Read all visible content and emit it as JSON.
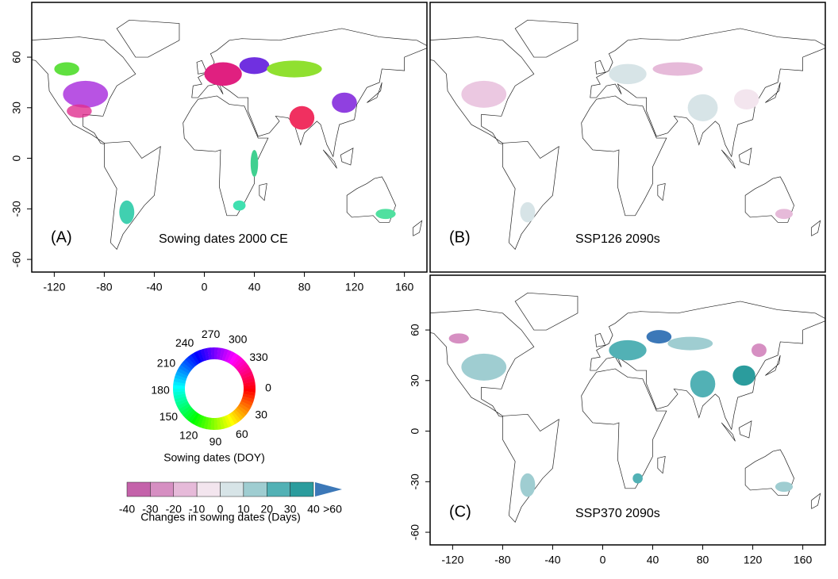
{
  "panels": [
    {
      "label": "(A)",
      "title": "Sowing dates 2000 CE"
    },
    {
      "label": "(B)",
      "title": "SSP126 2090s"
    },
    {
      "label": "(C)",
      "title": "SSP370 2090s"
    }
  ],
  "xlim": [
    -138,
    178
  ],
  "ylim": [
    -67.5,
    92.5
  ],
  "xticks": [
    -120,
    -80,
    -40,
    0,
    40,
    80,
    120,
    160
  ],
  "yticks": [
    -60,
    -30,
    0,
    30,
    60
  ],
  "doy_legend": {
    "title": "Sowing dates (DOY)",
    "ticks": [
      0,
      30,
      60,
      90,
      120,
      150,
      180,
      210,
      240,
      270,
      300,
      330
    ]
  },
  "change_legend": {
    "title": "Changes in sowing dates (Days)",
    "bins": [
      -40,
      -30,
      -20,
      -10,
      0,
      10,
      20,
      30,
      40
    ],
    "colors": [
      "#c462aa",
      "#d68fc2",
      "#e6bad9",
      "#f3e5ee",
      "#d7e4e7",
      "#9fcdd1",
      "#52b1b5",
      "#2b9c9d"
    ],
    "extend_label": ">60",
    "extend_color": "#3c78b8"
  }
}
